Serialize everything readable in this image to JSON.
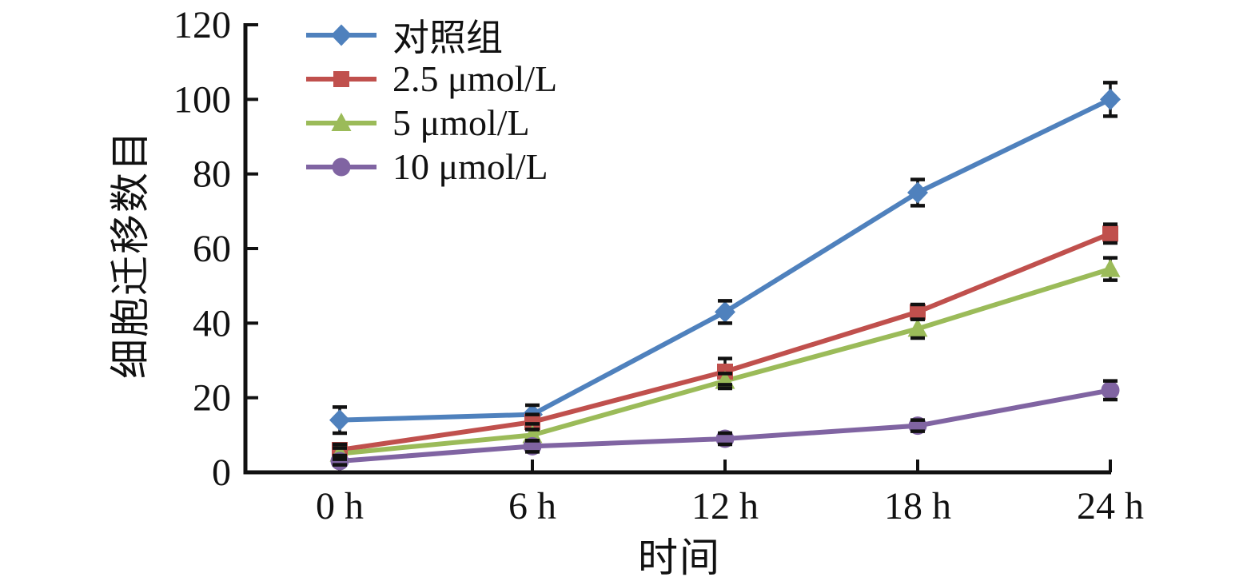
{
  "chart_data": {
    "type": "line",
    "title": "",
    "xlabel": "时间",
    "ylabel": "细胞迁移数目",
    "categories": [
      "0 h",
      "6 h",
      "12 h",
      "18 h",
      "24 h"
    ],
    "ylim": [
      0,
      120
    ],
    "yticks": [
      0,
      20,
      40,
      60,
      80,
      100,
      120
    ],
    "grid": false,
    "legend_position": "top-left-inside",
    "error_bars": true,
    "error_bar_color": "#111111",
    "axis_color": "#111111",
    "background_color": "#ffffff",
    "series": [
      {
        "name": "对照组",
        "marker": "diamond",
        "color": "#4F81BD",
        "values": [
          14,
          15.5,
          43,
          75,
          100
        ],
        "errors": [
          3.5,
          2.5,
          3,
          3.5,
          4.5
        ]
      },
      {
        "name": "2.5 μmol/L",
        "marker": "square",
        "color": "#C0504D",
        "values": [
          6,
          13.5,
          27,
          43,
          64
        ],
        "errors": [
          1.5,
          2,
          3.5,
          2,
          2.5
        ]
      },
      {
        "name": "5 μmol/L",
        "marker": "triangle",
        "color": "#9BBB59",
        "values": [
          5,
          10,
          24.5,
          38.5,
          54.5
        ],
        "errors": [
          1.5,
          1.5,
          2,
          2.5,
          3
        ]
      },
      {
        "name": "10 μmol/L",
        "marker": "circle",
        "color": "#8064A2",
        "values": [
          3,
          7,
          9,
          12.5,
          22
        ],
        "errors": [
          1,
          1.5,
          1.5,
          1.5,
          2.5
        ]
      }
    ]
  }
}
